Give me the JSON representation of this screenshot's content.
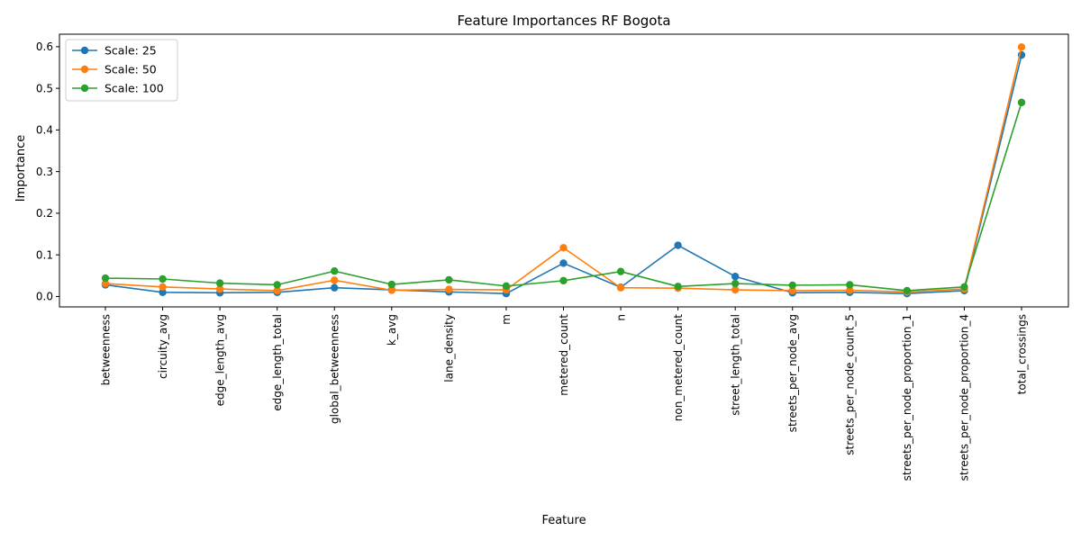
{
  "chart_data": {
    "type": "line",
    "title": "Feature Importances RF Bogota",
    "xlabel": "Feature",
    "ylabel": "Importance",
    "ylim": [
      -0.025,
      0.63
    ],
    "yticks": [
      0.0,
      0.1,
      0.2,
      0.3,
      0.4,
      0.5,
      0.6
    ],
    "ytick_labels": [
      "0.0",
      "0.1",
      "0.2",
      "0.3",
      "0.4",
      "0.5",
      "0.6"
    ],
    "grid": false,
    "legend_position": "top-left",
    "categories": [
      "betweenness",
      "circuity_avg",
      "edge_length_avg",
      "edge_length_total",
      "global_betweenness",
      "k_avg",
      "lane_density",
      "m",
      "metered_count",
      "n",
      "non_metered_count",
      "street_length_total",
      "streets_per_node_avg",
      "streets_per_node_count_5",
      "streets_per_node_proportion_1",
      "streets_per_node_proportion_4",
      "total_crossings"
    ],
    "series": [
      {
        "name": "Scale: 25",
        "color": "#1f77b4",
        "values": [
          0.028,
          0.01,
          0.009,
          0.01,
          0.021,
          0.016,
          0.011,
          0.007,
          0.08,
          0.022,
          0.123,
          0.048,
          0.009,
          0.01,
          0.007,
          0.014,
          0.58
        ]
      },
      {
        "name": "Scale: 50",
        "color": "#ff7f0e",
        "values": [
          0.031,
          0.023,
          0.018,
          0.014,
          0.039,
          0.015,
          0.017,
          0.016,
          0.117,
          0.021,
          0.02,
          0.016,
          0.014,
          0.015,
          0.011,
          0.018,
          0.599
        ]
      },
      {
        "name": "Scale: 100",
        "color": "#2ca02c",
        "values": [
          0.044,
          0.042,
          0.032,
          0.028,
          0.061,
          0.029,
          0.04,
          0.025,
          0.038,
          0.06,
          0.024,
          0.031,
          0.027,
          0.028,
          0.014,
          0.023,
          0.466
        ]
      }
    ]
  }
}
